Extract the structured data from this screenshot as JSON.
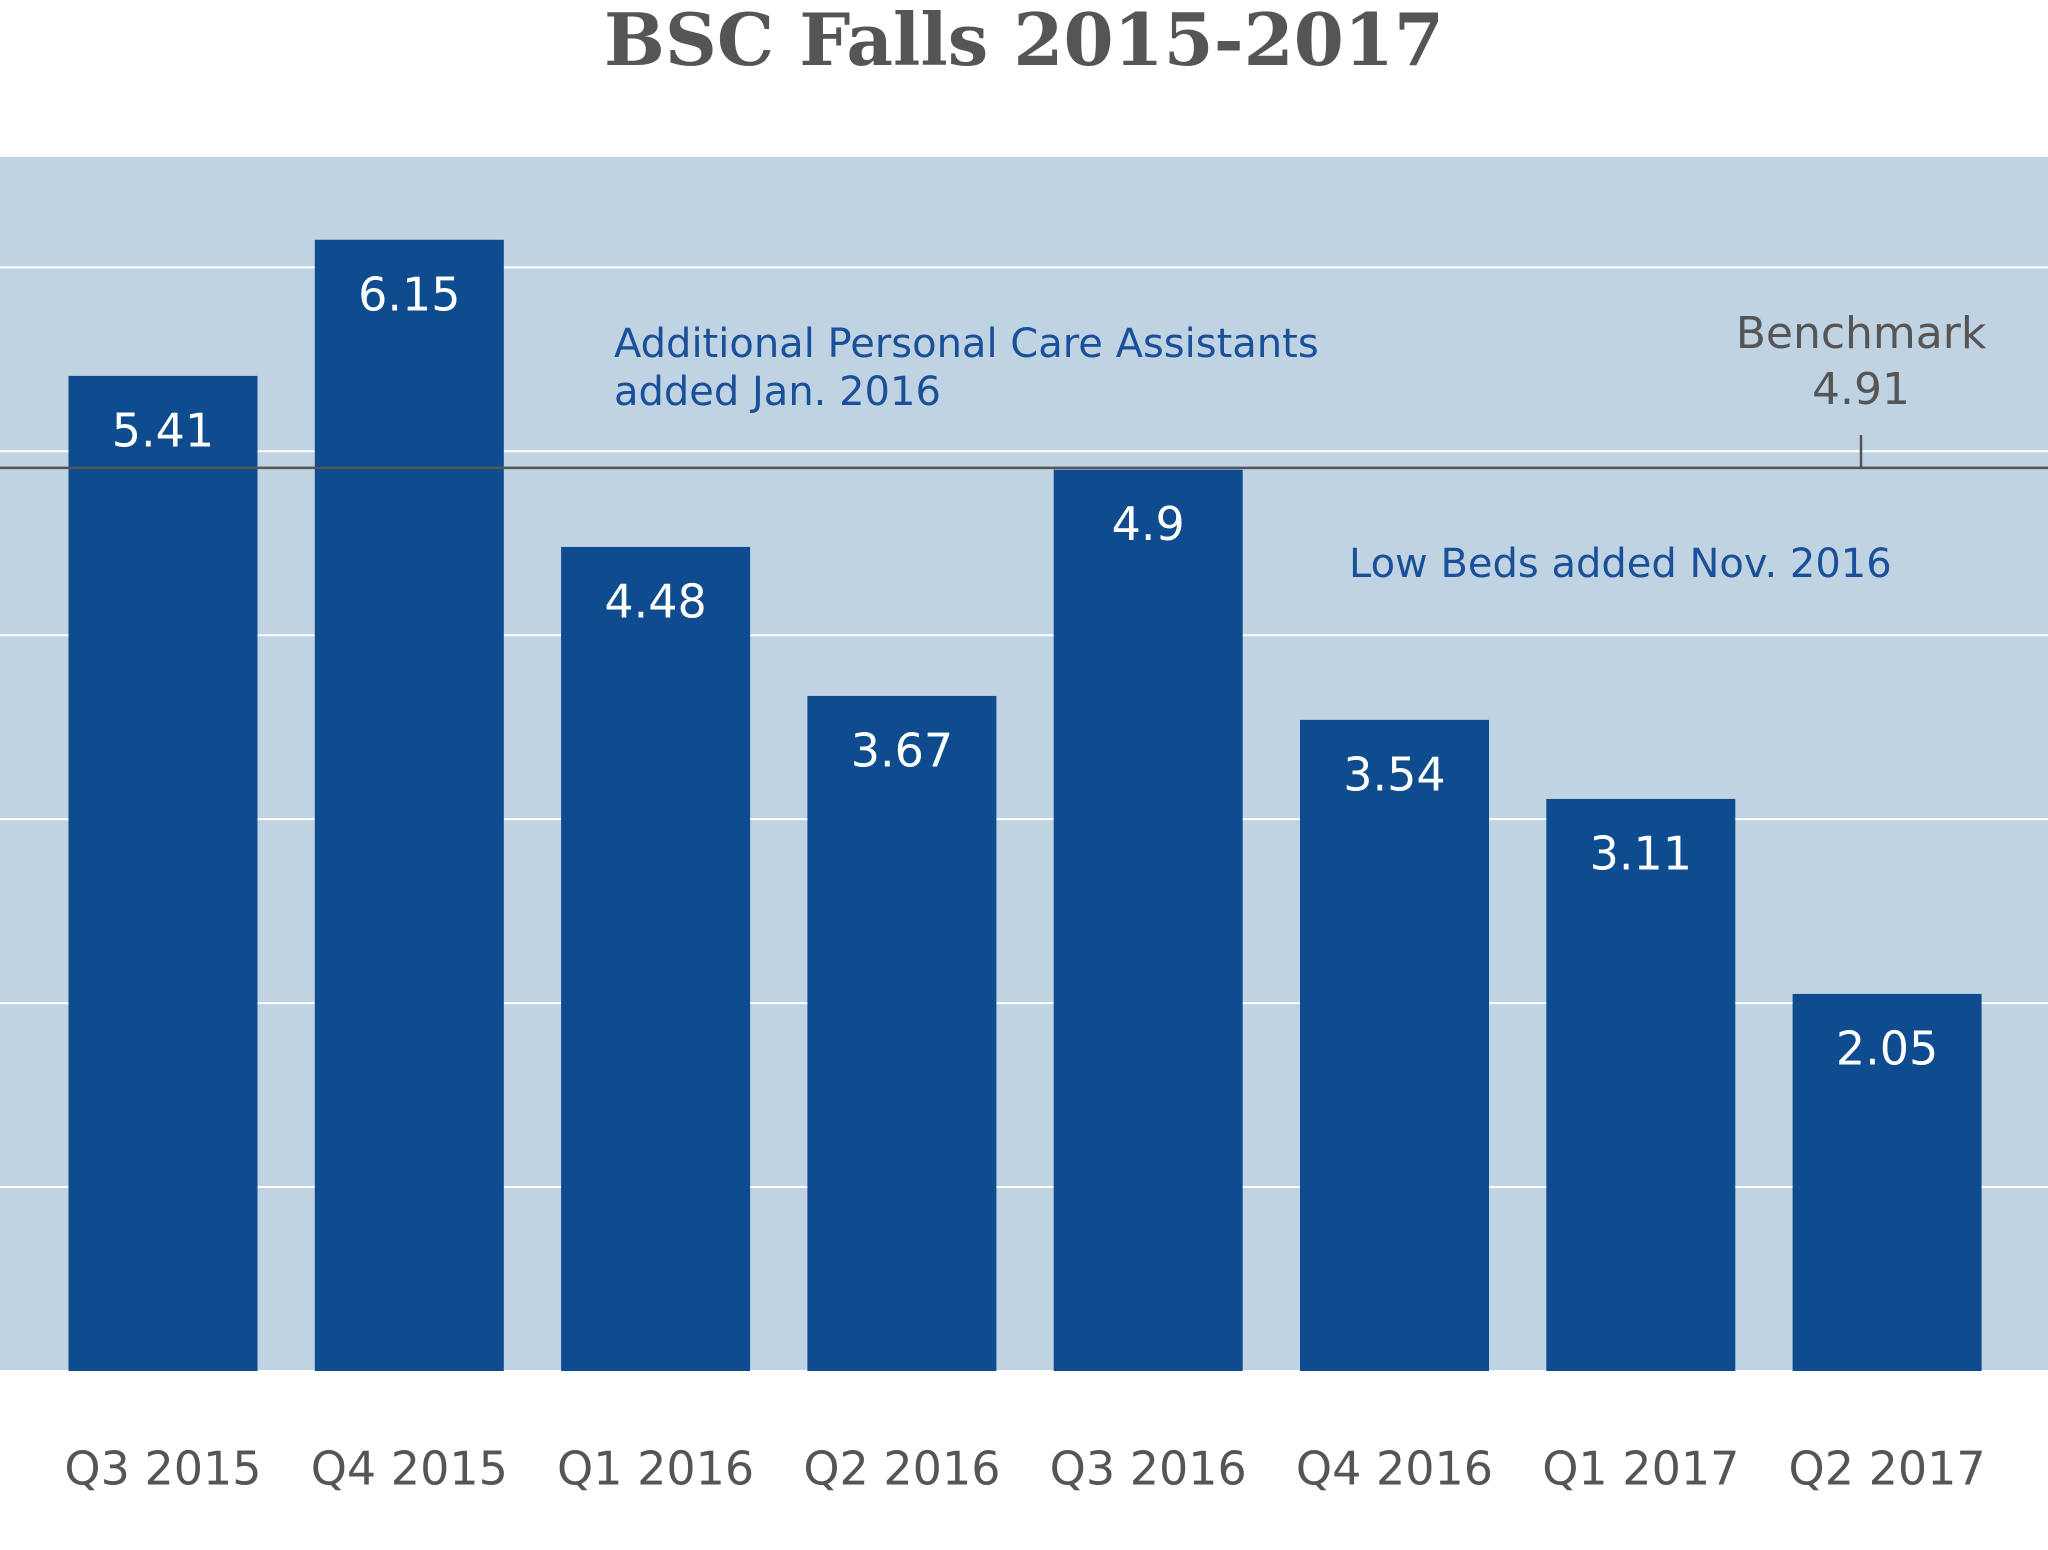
{
  "chart_data": {
    "type": "bar",
    "title": "BSC Falls 2015-2017",
    "categories": [
      "Q3 2015",
      "Q4 2015",
      "Q1 2016",
      "Q2 2016",
      "Q3 2016",
      "Q4 2016",
      "Q1 2017",
      "Q2 2017"
    ],
    "values": [
      5.41,
      6.15,
      4.48,
      3.67,
      4.9,
      3.54,
      3.11,
      2.05
    ],
    "color": "#0e4c8f",
    "ylim": [
      0,
      6.6
    ],
    "yticks": [
      0,
      1,
      2,
      3,
      4,
      5,
      6
    ],
    "grid": true,
    "benchmark": {
      "label": "Benchmark",
      "value": 4.91
    },
    "annotations": [
      {
        "lines": [
          "Additional Personal Care Assistants",
          "added Jan. 2016"
        ]
      },
      {
        "lines": [
          "Low Beds added Nov. 2016"
        ]
      }
    ]
  }
}
